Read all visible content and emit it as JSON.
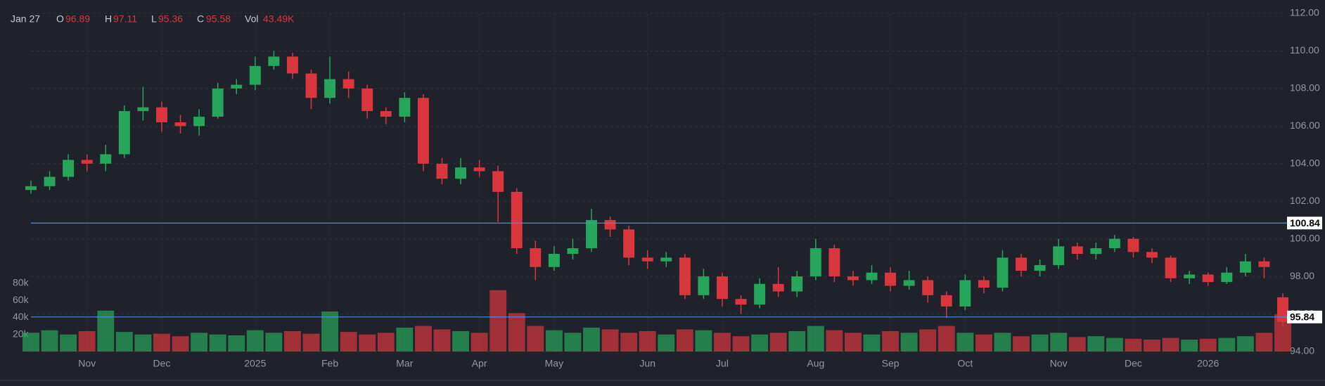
{
  "chart_data": {
    "type": "candlestick",
    "header": {
      "date": "Jan 27",
      "labels": [
        "O",
        "H",
        "L",
        "C",
        "Vol"
      ],
      "volume_label": "43.49K"
    },
    "categories": [
      null,
      null,
      null,
      "Nov",
      null,
      null,
      null,
      "Dec",
      null,
      null,
      null,
      null,
      "2025",
      null,
      null,
      null,
      "Feb",
      null,
      null,
      null,
      "Mar",
      null,
      null,
      null,
      "Apr",
      null,
      null,
      null,
      "May",
      null,
      null,
      null,
      null,
      "Jun",
      null,
      null,
      null,
      "Jul",
      null,
      null,
      null,
      null,
      "Aug",
      null,
      null,
      null,
      "Sep",
      null,
      null,
      null,
      "Oct",
      null,
      null,
      null,
      null,
      "Nov",
      null,
      null,
      null,
      "Dec",
      null,
      null,
      null,
      "2026",
      null,
      null,
      null,
      null
    ],
    "open": [
      102.6,
      102.8,
      103.3,
      104.2,
      104.0,
      104.5,
      106.8,
      107.0,
      106.2,
      106.0,
      106.5,
      108.0,
      108.2,
      109.2,
      109.7,
      108.8,
      107.5,
      108.5,
      108.0,
      106.8,
      106.5,
      107.5,
      104.0,
      103.2,
      103.8,
      103.6,
      102.5,
      99.5,
      98.5,
      99.2,
      99.5,
      101.0,
      100.5,
      99.0,
      98.8,
      99.0,
      97.0,
      98.0,
      96.8,
      96.5,
      97.6,
      97.2,
      98.0,
      99.5,
      98.0,
      97.8,
      98.2,
      97.5,
      97.8,
      97.0,
      96.4,
      97.8,
      97.4,
      99.0,
      98.3,
      98.6,
      99.6,
      99.2,
      99.5,
      100.0,
      99.3,
      99.0,
      97.9,
      98.1,
      97.7,
      98.2,
      98.8,
      96.89
    ],
    "high": [
      103.1,
      103.6,
      104.5,
      104.5,
      105.0,
      107.1,
      108.1,
      107.3,
      106.6,
      106.9,
      108.3,
      108.5,
      109.7,
      110.0,
      109.9,
      109.0,
      109.7,
      108.9,
      108.2,
      107.0,
      107.8,
      107.7,
      104.3,
      104.3,
      104.2,
      103.9,
      102.7,
      99.9,
      99.6,
      100.0,
      101.6,
      101.2,
      100.7,
      99.4,
      99.3,
      99.2,
      98.4,
      98.2,
      97.0,
      97.9,
      98.5,
      98.3,
      100.0,
      99.7,
      98.3,
      98.6,
      98.5,
      98.3,
      98.0,
      97.2,
      98.1,
      98.0,
      99.4,
      99.2,
      98.9,
      100.0,
      99.8,
      99.8,
      100.2,
      100.1,
      99.5,
      99.1,
      98.3,
      98.2,
      98.5,
      99.2,
      99.0,
      97.11
    ],
    "low": [
      102.4,
      102.6,
      103.1,
      103.6,
      103.6,
      104.3,
      106.3,
      105.7,
      105.6,
      105.5,
      106.4,
      107.7,
      107.9,
      109.0,
      108.5,
      106.9,
      107.2,
      107.5,
      106.4,
      106.1,
      106.2,
      103.6,
      102.9,
      102.9,
      103.3,
      100.9,
      99.2,
      97.8,
      98.3,
      98.9,
      99.3,
      100.1,
      98.6,
      98.4,
      98.5,
      96.8,
      96.8,
      96.4,
      96.0,
      96.3,
      96.9,
      96.9,
      97.8,
      97.7,
      97.5,
      97.6,
      97.2,
      97.3,
      96.6,
      95.8,
      96.2,
      97.1,
      97.2,
      98.0,
      98.0,
      98.4,
      98.9,
      98.9,
      99.3,
      99.0,
      98.7,
      97.7,
      97.6,
      97.5,
      97.6,
      98.0,
      97.9,
      95.36
    ],
    "close": [
      102.8,
      103.3,
      104.2,
      104.0,
      104.5,
      106.8,
      107.0,
      106.2,
      106.0,
      106.5,
      108.0,
      108.2,
      109.2,
      109.7,
      108.8,
      107.5,
      108.5,
      108.0,
      106.8,
      106.5,
      107.5,
      104.0,
      103.2,
      103.8,
      103.6,
      102.5,
      99.5,
      98.5,
      99.2,
      99.5,
      101.0,
      100.5,
      99.0,
      98.8,
      99.0,
      97.0,
      98.0,
      96.8,
      96.5,
      97.6,
      97.2,
      98.0,
      99.5,
      98.0,
      97.8,
      98.2,
      97.5,
      97.8,
      97.0,
      96.4,
      97.8,
      97.4,
      99.0,
      98.3,
      98.6,
      99.6,
      99.2,
      99.5,
      100.0,
      99.3,
      99.0,
      97.9,
      98.1,
      97.7,
      98.2,
      98.8,
      98.5,
      95.58
    ],
    "volume": [
      22000,
      25000,
      20000,
      24000,
      48000,
      23000,
      20000,
      21000,
      18000,
      22000,
      20000,
      19000,
      25000,
      22000,
      24000,
      21000,
      47000,
      23000,
      20000,
      22000,
      28000,
      30000,
      26000,
      24000,
      22000,
      72000,
      45000,
      30000,
      25000,
      22000,
      28000,
      26000,
      22000,
      24000,
      20000,
      26000,
      25000,
      22000,
      18000,
      20000,
      22000,
      24000,
      30000,
      25000,
      22000,
      20000,
      24000,
      22000,
      26000,
      30000,
      22000,
      20000,
      22000,
      18000,
      20000,
      22000,
      17000,
      18000,
      16000,
      15000,
      14000,
      16000,
      14000,
      15000,
      16000,
      18000,
      22000,
      43490
    ],
    "up_color": "#26a65b",
    "down_color": "#d9363e",
    "ylim": [
      94,
      112
    ],
    "yticks": [
      {
        "value": 94,
        "label": "94.00"
      },
      {
        "value": 96,
        "label": "96.00"
      },
      {
        "value": 98,
        "label": "98.00"
      },
      {
        "value": 100,
        "label": "100.00"
      },
      {
        "value": 102,
        "label": "102.00"
      },
      {
        "value": 104,
        "label": "104.00"
      },
      {
        "value": 106,
        "label": "106.00"
      },
      {
        "value": 108,
        "label": "108.00"
      },
      {
        "value": 110,
        "label": "110.00"
      },
      {
        "value": 112,
        "label": "112.00"
      }
    ],
    "volume_ylim": [
      0,
      80000
    ],
    "volume_ticks": [
      {
        "value": 20000,
        "label": "20k"
      },
      {
        "value": 40000,
        "label": "40k"
      },
      {
        "value": 60000,
        "label": "60k"
      },
      {
        "value": 80000,
        "label": "80k"
      }
    ],
    "price_lines": [
      100.84,
      95.84
    ],
    "grid": true
  }
}
